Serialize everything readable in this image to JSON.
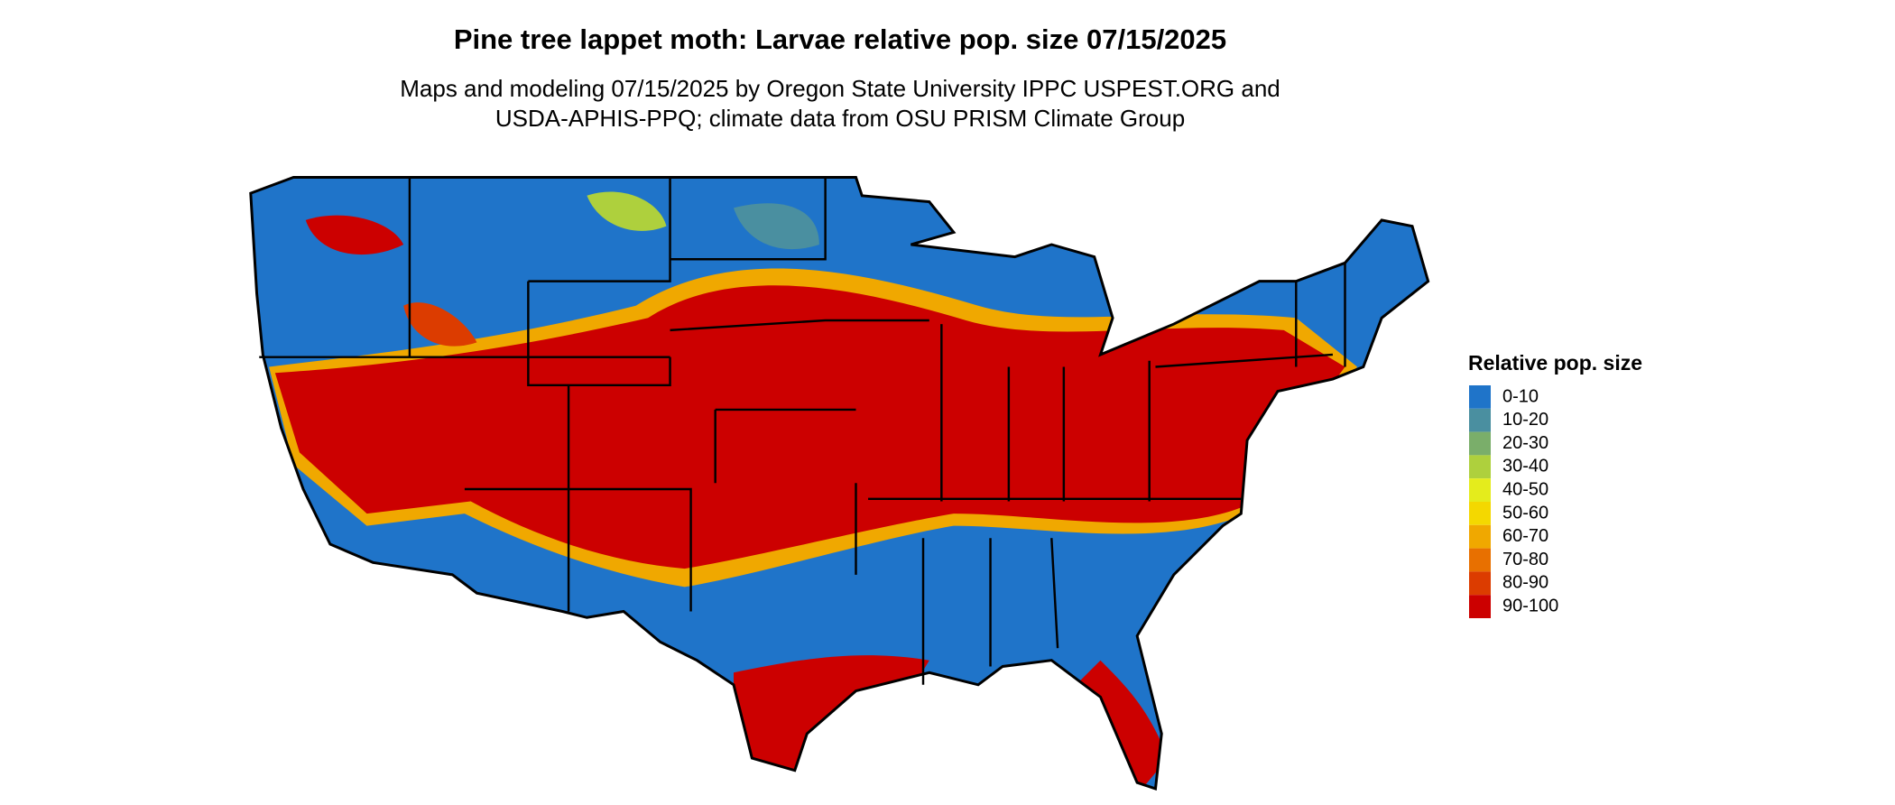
{
  "map": {
    "title": "Pine tree lappet moth: Larvae relative pop. size 07/15/2025",
    "subtitle": [
      "Maps and modeling 07/15/2025 by Oregon State University IPPC USPEST.ORG and",
      "USDA-APHIS-PPQ; climate data from OSU PRISM Climate Group"
    ],
    "legend": {
      "title": "Relative pop. size",
      "items": [
        {
          "label": "0-10",
          "color": "#1f74c9"
        },
        {
          "label": "10-20",
          "color": "#4a8fa0"
        },
        {
          "label": "20-30",
          "color": "#7aae6a"
        },
        {
          "label": "30-40",
          "color": "#aed03d"
        },
        {
          "label": "40-50",
          "color": "#e4ec1c"
        },
        {
          "label": "50-60",
          "color": "#f4d800"
        },
        {
          "label": "60-70",
          "color": "#f0a800"
        },
        {
          "label": "70-80",
          "color": "#e87000"
        },
        {
          "label": "80-90",
          "color": "#dc3c00"
        },
        {
          "label": "90-100",
          "color": "#cc0000"
        }
      ]
    }
  }
}
